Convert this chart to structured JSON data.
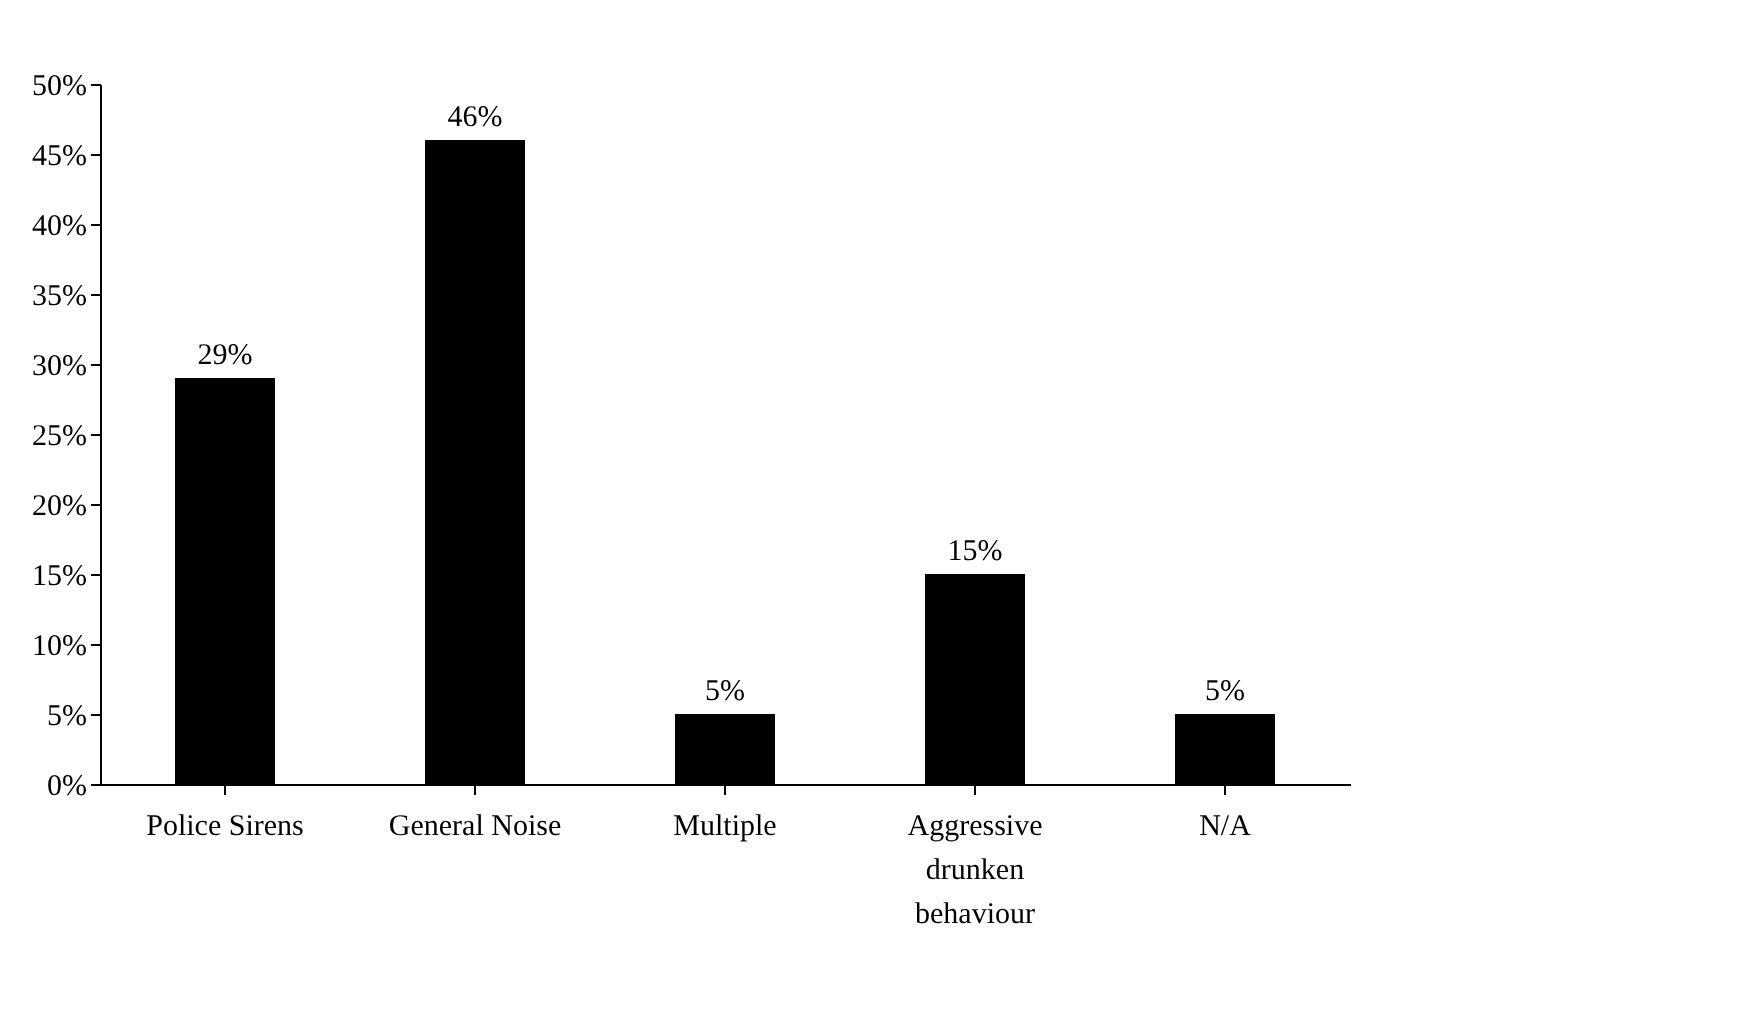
{
  "chart_data": {
    "type": "bar",
    "categories": [
      "Police Sirens",
      "General Noise",
      "Multiple",
      "Aggressive drunken behaviour",
      "N/A"
    ],
    "values": [
      29,
      46,
      5,
      15,
      5
    ],
    "value_labels": [
      "29%",
      "46%",
      "5%",
      "15%",
      "5%"
    ],
    "color": "#000000",
    "ylim": [
      0,
      50
    ],
    "yticks": [
      {
        "value": 0,
        "label": "0%"
      },
      {
        "value": 5,
        "label": "5%"
      },
      {
        "value": 10,
        "label": "10%"
      },
      {
        "value": 15,
        "label": "15%"
      },
      {
        "value": 20,
        "label": "20%"
      },
      {
        "value": 25,
        "label": "25%"
      },
      {
        "value": 30,
        "label": "30%"
      },
      {
        "value": 35,
        "label": "35%"
      },
      {
        "value": 40,
        "label": "40%"
      },
      {
        "value": 45,
        "label": "45%"
      },
      {
        "value": 50,
        "label": "50%"
      }
    ],
    "grid": false
  }
}
